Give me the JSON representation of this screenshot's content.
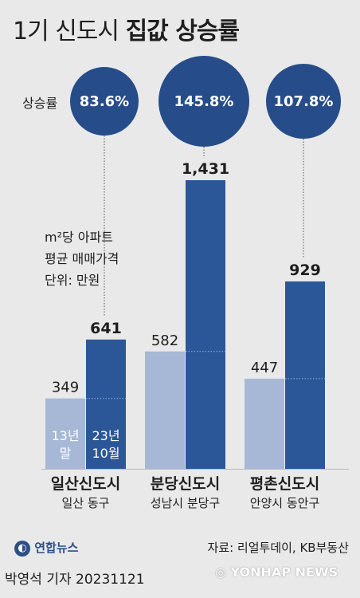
{
  "title": {
    "light": "1기 신도시",
    "bold": "집값 상승률"
  },
  "rate_label": "상승률",
  "unit_lines": [
    "m²당 아파트",
    "평균 매매가격",
    "단위: 만원"
  ],
  "period_labels": {
    "old": [
      "13년",
      "말"
    ],
    "new": [
      "23년",
      "10월"
    ]
  },
  "source": "자료: 리얼투데이, KB부동산",
  "reporter": "박영석 기자  20231121",
  "logo": {
    "name": "연합뉴스",
    "sub": "YONHAP NEWS"
  },
  "chart_data": {
    "type": "bar",
    "categories": [
      "일산신도시",
      "분당신도시",
      "평촌신도시"
    ],
    "subcategories": [
      "일산 동구",
      "성남시 분당구",
      "안양시 동안구"
    ],
    "series": [
      {
        "name": "13년 말",
        "values": [
          349,
          582,
          447
        ]
      },
      {
        "name": "23년 10월",
        "values": [
          641,
          1431,
          929
        ]
      }
    ],
    "value_labels": {
      "old": [
        "349",
        "582",
        "447"
      ],
      "new": [
        "641",
        "1,431",
        "929"
      ]
    },
    "growth_rates": [
      "83.6%",
      "145.8%",
      "107.8%"
    ],
    "ylim": [
      0,
      1431
    ],
    "colors": {
      "old": "#a6b8d6",
      "new": "#2b5798",
      "circle": "#264d89",
      "text": "#1e1e1e"
    }
  }
}
